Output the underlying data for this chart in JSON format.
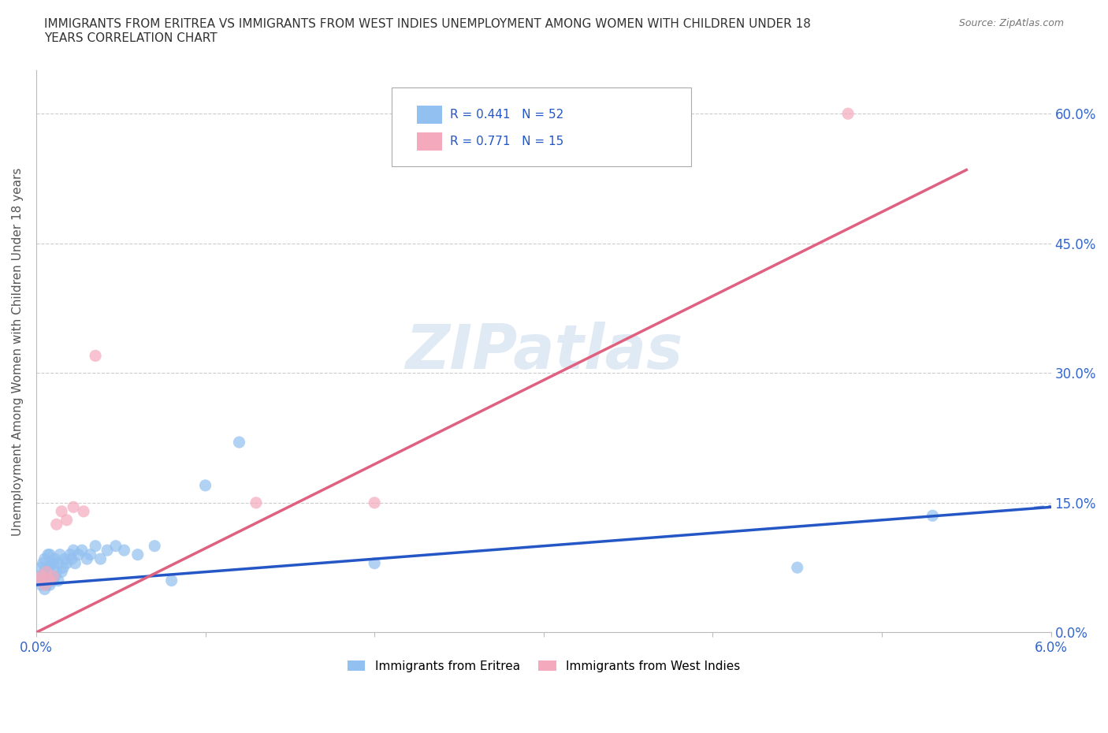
{
  "title_line1": "IMMIGRANTS FROM ERITREA VS IMMIGRANTS FROM WEST INDIES UNEMPLOYMENT AMONG WOMEN WITH CHILDREN UNDER 18",
  "title_line2": "YEARS CORRELATION CHART",
  "source": "Source: ZipAtlas.com",
  "ylabel": "Unemployment Among Women with Children Under 18 years",
  "xlim": [
    0,
    0.06
  ],
  "ylim": [
    0,
    0.65
  ],
  "ytick_vals": [
    0.0,
    0.15,
    0.3,
    0.45,
    0.6
  ],
  "ytick_labels": [
    "0.0%",
    "15.0%",
    "30.0%",
    "45.0%",
    "60.0%"
  ],
  "xtick_vals": [
    0.0,
    0.01,
    0.02,
    0.03,
    0.04,
    0.05,
    0.06
  ],
  "xtick_labels_shown": [
    "0.0%",
    "",
    "",
    "",
    "",
    "",
    "6.0%"
  ],
  "color_eritrea": "#92C0F0",
  "color_west_indies": "#F4AABC",
  "color_eritrea_trend": "#2457C5",
  "color_west_indies_trend": "#E06080",
  "watermark": "ZIPatlas",
  "eritrea_trend_x0": 0.0,
  "eritrea_trend_y0": 0.055,
  "eritrea_trend_x1": 0.06,
  "eritrea_trend_y1": 0.145,
  "wi_trend_x0": 0.0,
  "wi_trend_y0": 0.0,
  "wi_trend_x1": 0.055,
  "wi_trend_y1": 0.535,
  "eritrea_x": [
    0.0001,
    0.0002,
    0.0003,
    0.0003,
    0.0004,
    0.0004,
    0.0005,
    0.0005,
    0.0005,
    0.0006,
    0.0006,
    0.0007,
    0.0007,
    0.0007,
    0.0008,
    0.0008,
    0.0008,
    0.0009,
    0.0009,
    0.001,
    0.001,
    0.0011,
    0.0011,
    0.0012,
    0.0013,
    0.0013,
    0.0014,
    0.0015,
    0.0016,
    0.0017,
    0.0018,
    0.002,
    0.0021,
    0.0022,
    0.0023,
    0.0025,
    0.0027,
    0.003,
    0.0032,
    0.0035,
    0.0038,
    0.0042,
    0.0047,
    0.0052,
    0.006,
    0.007,
    0.008,
    0.01,
    0.012,
    0.02,
    0.045,
    0.053
  ],
  "eritrea_y": [
    0.06,
    0.065,
    0.055,
    0.075,
    0.06,
    0.08,
    0.05,
    0.07,
    0.085,
    0.055,
    0.075,
    0.06,
    0.07,
    0.09,
    0.055,
    0.075,
    0.09,
    0.065,
    0.08,
    0.06,
    0.08,
    0.065,
    0.085,
    0.07,
    0.06,
    0.08,
    0.09,
    0.07,
    0.075,
    0.085,
    0.08,
    0.09,
    0.085,
    0.095,
    0.08,
    0.09,
    0.095,
    0.085,
    0.09,
    0.1,
    0.085,
    0.095,
    0.1,
    0.095,
    0.09,
    0.1,
    0.06,
    0.17,
    0.22,
    0.08,
    0.075,
    0.135
  ],
  "wi_x": [
    0.0002,
    0.0003,
    0.0005,
    0.0006,
    0.0008,
    0.001,
    0.0012,
    0.0015,
    0.0018,
    0.0022,
    0.0028,
    0.0035,
    0.013,
    0.02,
    0.048
  ],
  "wi_y": [
    0.06,
    0.065,
    0.055,
    0.07,
    0.06,
    0.065,
    0.125,
    0.14,
    0.13,
    0.145,
    0.14,
    0.32,
    0.15,
    0.15,
    0.6
  ]
}
